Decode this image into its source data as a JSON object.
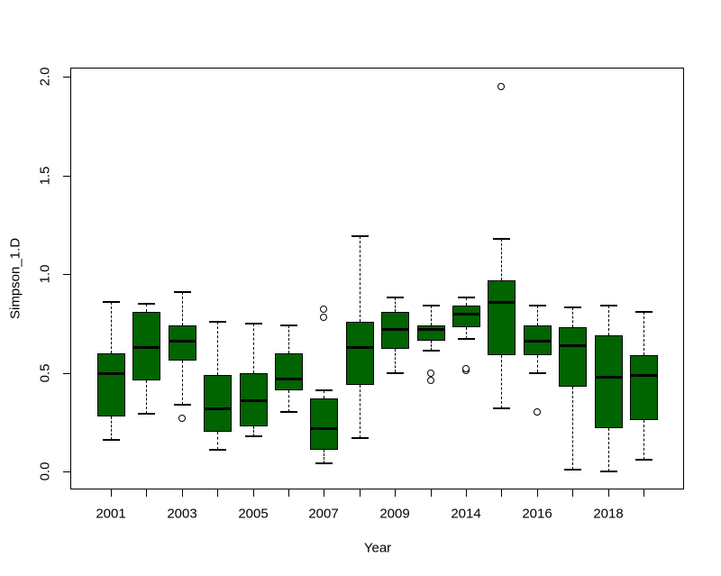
{
  "figure": {
    "background_color": "#ffffff",
    "foreground_color": "#000000"
  },
  "chart_data": {
    "type": "boxplot",
    "title": "",
    "xlabel": "Year",
    "ylabel": "Simpson_1.D",
    "y_ticks": [
      0.0,
      0.5,
      1.0,
      1.5,
      2.0
    ],
    "ylim": [
      -0.09,
      2.05
    ],
    "grid": "off",
    "legend": "none",
    "box_fill_color": "#006400",
    "median_color": "#000000",
    "outlier_marker": "open-circle",
    "visible_x_tick_labels": [
      "2001",
      "2003",
      "2005",
      "2007",
      "2009",
      "2014",
      "2016",
      "2018"
    ],
    "boxes": [
      {
        "tick_label": "2001",
        "whisker_low": 0.16,
        "q1": 0.28,
        "median": 0.5,
        "q3": 0.6,
        "whisker_high": 0.86,
        "outliers": []
      },
      {
        "tick_label": "",
        "whisker_low": 0.29,
        "q1": 0.46,
        "median": 0.63,
        "q3": 0.81,
        "whisker_high": 0.85,
        "outliers": []
      },
      {
        "tick_label": "2003",
        "whisker_low": 0.34,
        "q1": 0.56,
        "median": 0.66,
        "q3": 0.74,
        "whisker_high": 0.91,
        "outliers": [
          0.27
        ]
      },
      {
        "tick_label": "",
        "whisker_low": 0.11,
        "q1": 0.2,
        "median": 0.32,
        "q3": 0.49,
        "whisker_high": 0.76,
        "outliers": []
      },
      {
        "tick_label": "2005",
        "whisker_low": 0.18,
        "q1": 0.23,
        "median": 0.36,
        "q3": 0.5,
        "whisker_high": 0.75,
        "outliers": []
      },
      {
        "tick_label": "",
        "whisker_low": 0.3,
        "q1": 0.41,
        "median": 0.47,
        "q3": 0.6,
        "whisker_high": 0.74,
        "outliers": []
      },
      {
        "tick_label": "2007",
        "whisker_low": 0.04,
        "q1": 0.11,
        "median": 0.22,
        "q3": 0.37,
        "whisker_high": 0.41,
        "outliers": [
          0.78,
          0.82
        ]
      },
      {
        "tick_label": "",
        "whisker_low": 0.17,
        "q1": 0.44,
        "median": 0.63,
        "q3": 0.76,
        "whisker_high": 1.19,
        "outliers": []
      },
      {
        "tick_label": "2009",
        "whisker_low": 0.5,
        "q1": 0.62,
        "median": 0.72,
        "q3": 0.81,
        "whisker_high": 0.88,
        "outliers": []
      },
      {
        "tick_label": "",
        "whisker_low": 0.61,
        "q1": 0.66,
        "median": 0.72,
        "q3": 0.74,
        "whisker_high": 0.84,
        "outliers": [
          0.46,
          0.5
        ]
      },
      {
        "tick_label": "2014",
        "whisker_low": 0.67,
        "q1": 0.73,
        "median": 0.8,
        "q3": 0.84,
        "whisker_high": 0.88,
        "outliers": [
          0.51,
          0.52
        ]
      },
      {
        "tick_label": "",
        "whisker_low": 0.32,
        "q1": 0.59,
        "median": 0.86,
        "q3": 0.97,
        "whisker_high": 1.18,
        "outliers": [
          1.95
        ]
      },
      {
        "tick_label": "2016",
        "whisker_low": 0.5,
        "q1": 0.59,
        "median": 0.66,
        "q3": 0.74,
        "whisker_high": 0.84,
        "outliers": [
          0.3
        ]
      },
      {
        "tick_label": "",
        "whisker_low": 0.01,
        "q1": 0.43,
        "median": 0.64,
        "q3": 0.73,
        "whisker_high": 0.83,
        "outliers": []
      },
      {
        "tick_label": "2018",
        "whisker_low": 0.0,
        "q1": 0.22,
        "median": 0.48,
        "q3": 0.69,
        "whisker_high": 0.84,
        "outliers": []
      },
      {
        "tick_label": "",
        "whisker_low": 0.06,
        "q1": 0.26,
        "median": 0.49,
        "q3": 0.59,
        "whisker_high": 0.81,
        "outliers": []
      }
    ]
  }
}
